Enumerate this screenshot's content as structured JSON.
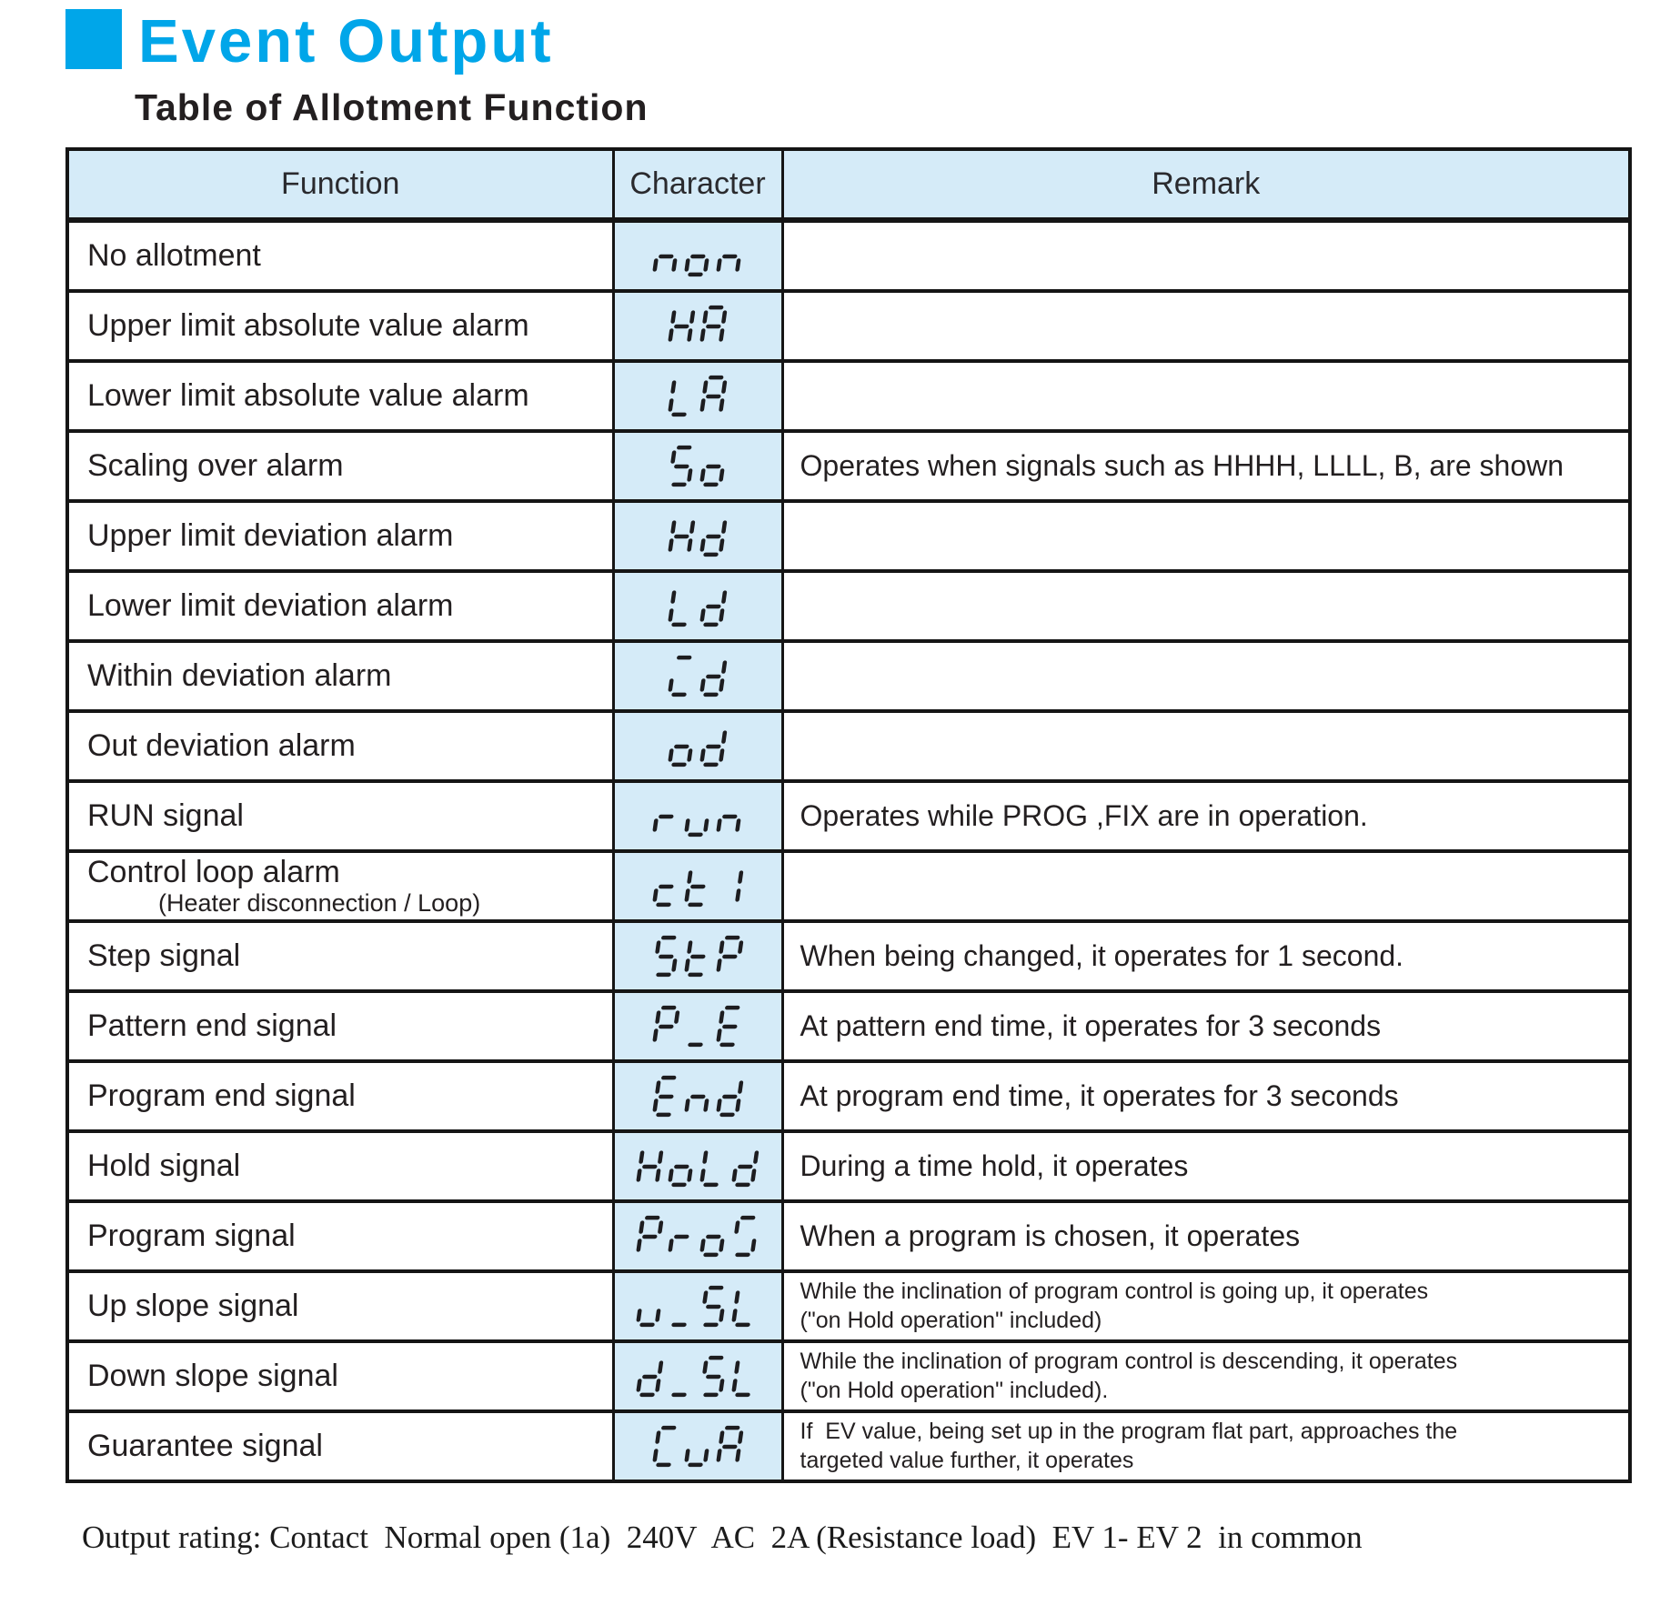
{
  "page": {
    "title": "Event Output",
    "subtitle": "Table of Allotment Function",
    "footer_note": "Output rating: Contact  Normal open (1a)  240V  AC  2A (Resistance load)  EV 1- EV 2  in common",
    "accent_color": "#00a6e9",
    "cell_blue": "#d5ebf8",
    "segment_color": "#1d1d20"
  },
  "table": {
    "headers": [
      "Function",
      "Character",
      "Remark"
    ],
    "rows": [
      {
        "function": "No allotment",
        "function_sub": "",
        "character": "non",
        "glyphs": [
          "n",
          "o",
          "n"
        ],
        "remark": ""
      },
      {
        "function": "Upper limit absolute value alarm",
        "function_sub": "",
        "character": "HA",
        "glyphs": [
          "H",
          "A"
        ],
        "remark": ""
      },
      {
        "function": "Lower limit absolute value alarm",
        "function_sub": "",
        "character": "LA",
        "glyphs": [
          "L",
          "A"
        ],
        "remark": ""
      },
      {
        "function": "Scaling over alarm",
        "function_sub": "",
        "character": "So",
        "glyphs": [
          "S",
          "o"
        ],
        "remark": "Operates when signals such as HHHH, LLLL, B, are shown"
      },
      {
        "function": "Upper limit deviation alarm",
        "function_sub": "",
        "character": "Hd",
        "glyphs": [
          "H",
          "d"
        ],
        "remark": ""
      },
      {
        "function": "Lower limit deviation alarm",
        "function_sub": "",
        "character": "Ld",
        "glyphs": [
          "L",
          "d"
        ],
        "remark": ""
      },
      {
        "function": "Within deviation alarm",
        "function_sub": "",
        "character": "Cd",
        "glyphs": [
          "cbar",
          "d"
        ],
        "remark": ""
      },
      {
        "function": "Out deviation alarm",
        "function_sub": "",
        "character": "od",
        "glyphs": [
          "o",
          "d"
        ],
        "remark": ""
      },
      {
        "function": "RUN signal",
        "function_sub": "",
        "character": "run",
        "glyphs": [
          "r",
          "u",
          "n"
        ],
        "remark": "Operates while PROG ,FIX are in operation."
      },
      {
        "function": "Control loop alarm",
        "function_sub": "(Heater disconnection / Loop)",
        "character": "ct1",
        "glyphs": [
          "c",
          "t",
          "1"
        ],
        "remark": ""
      },
      {
        "function": "Step signal",
        "function_sub": "",
        "character": "StP",
        "glyphs": [
          "S",
          "t",
          "P"
        ],
        "remark": "When being changed, it operates for 1 second."
      },
      {
        "function": "Pattern end signal",
        "function_sub": "",
        "character": "P_E",
        "glyphs": [
          "P",
          "_",
          "E"
        ],
        "remark": "At pattern end time, it operates for 3 seconds"
      },
      {
        "function": "Program end signal",
        "function_sub": "",
        "character": "End",
        "glyphs": [
          "E",
          "n",
          "d"
        ],
        "remark": "At program end time, it operates for 3 seconds"
      },
      {
        "function": "Hold signal",
        "function_sub": "",
        "character": "HoLd",
        "glyphs": [
          "H",
          "o",
          "L",
          "d"
        ],
        "remark": "During a time hold, it operates"
      },
      {
        "function": "Program signal",
        "function_sub": "",
        "character": "ProG",
        "glyphs": [
          "P",
          "r",
          "o",
          "G"
        ],
        "remark": "When a program is chosen, it operates"
      },
      {
        "function": "Up slope signal",
        "function_sub": "",
        "character": "u_SL",
        "glyphs": [
          "u",
          "_",
          "S",
          "L"
        ],
        "remark": "While the inclination of program control is going up, it operates\n(\"on Hold operation\" included)"
      },
      {
        "function": "Down slope signal",
        "function_sub": "",
        "character": "d_SL",
        "glyphs": [
          "d",
          "_",
          "S",
          "L"
        ],
        "remark": "While the inclination of program control is descending, it operates\n(\"on Hold operation\" included)."
      },
      {
        "function": "Guarantee signal",
        "function_sub": "",
        "character": "GuA",
        "glyphs": [
          "G2",
          "u",
          "A"
        ],
        "remark": "If  EV value, being set up in the program flat part, approaches the\ntargeted value further, it operates"
      }
    ]
  }
}
